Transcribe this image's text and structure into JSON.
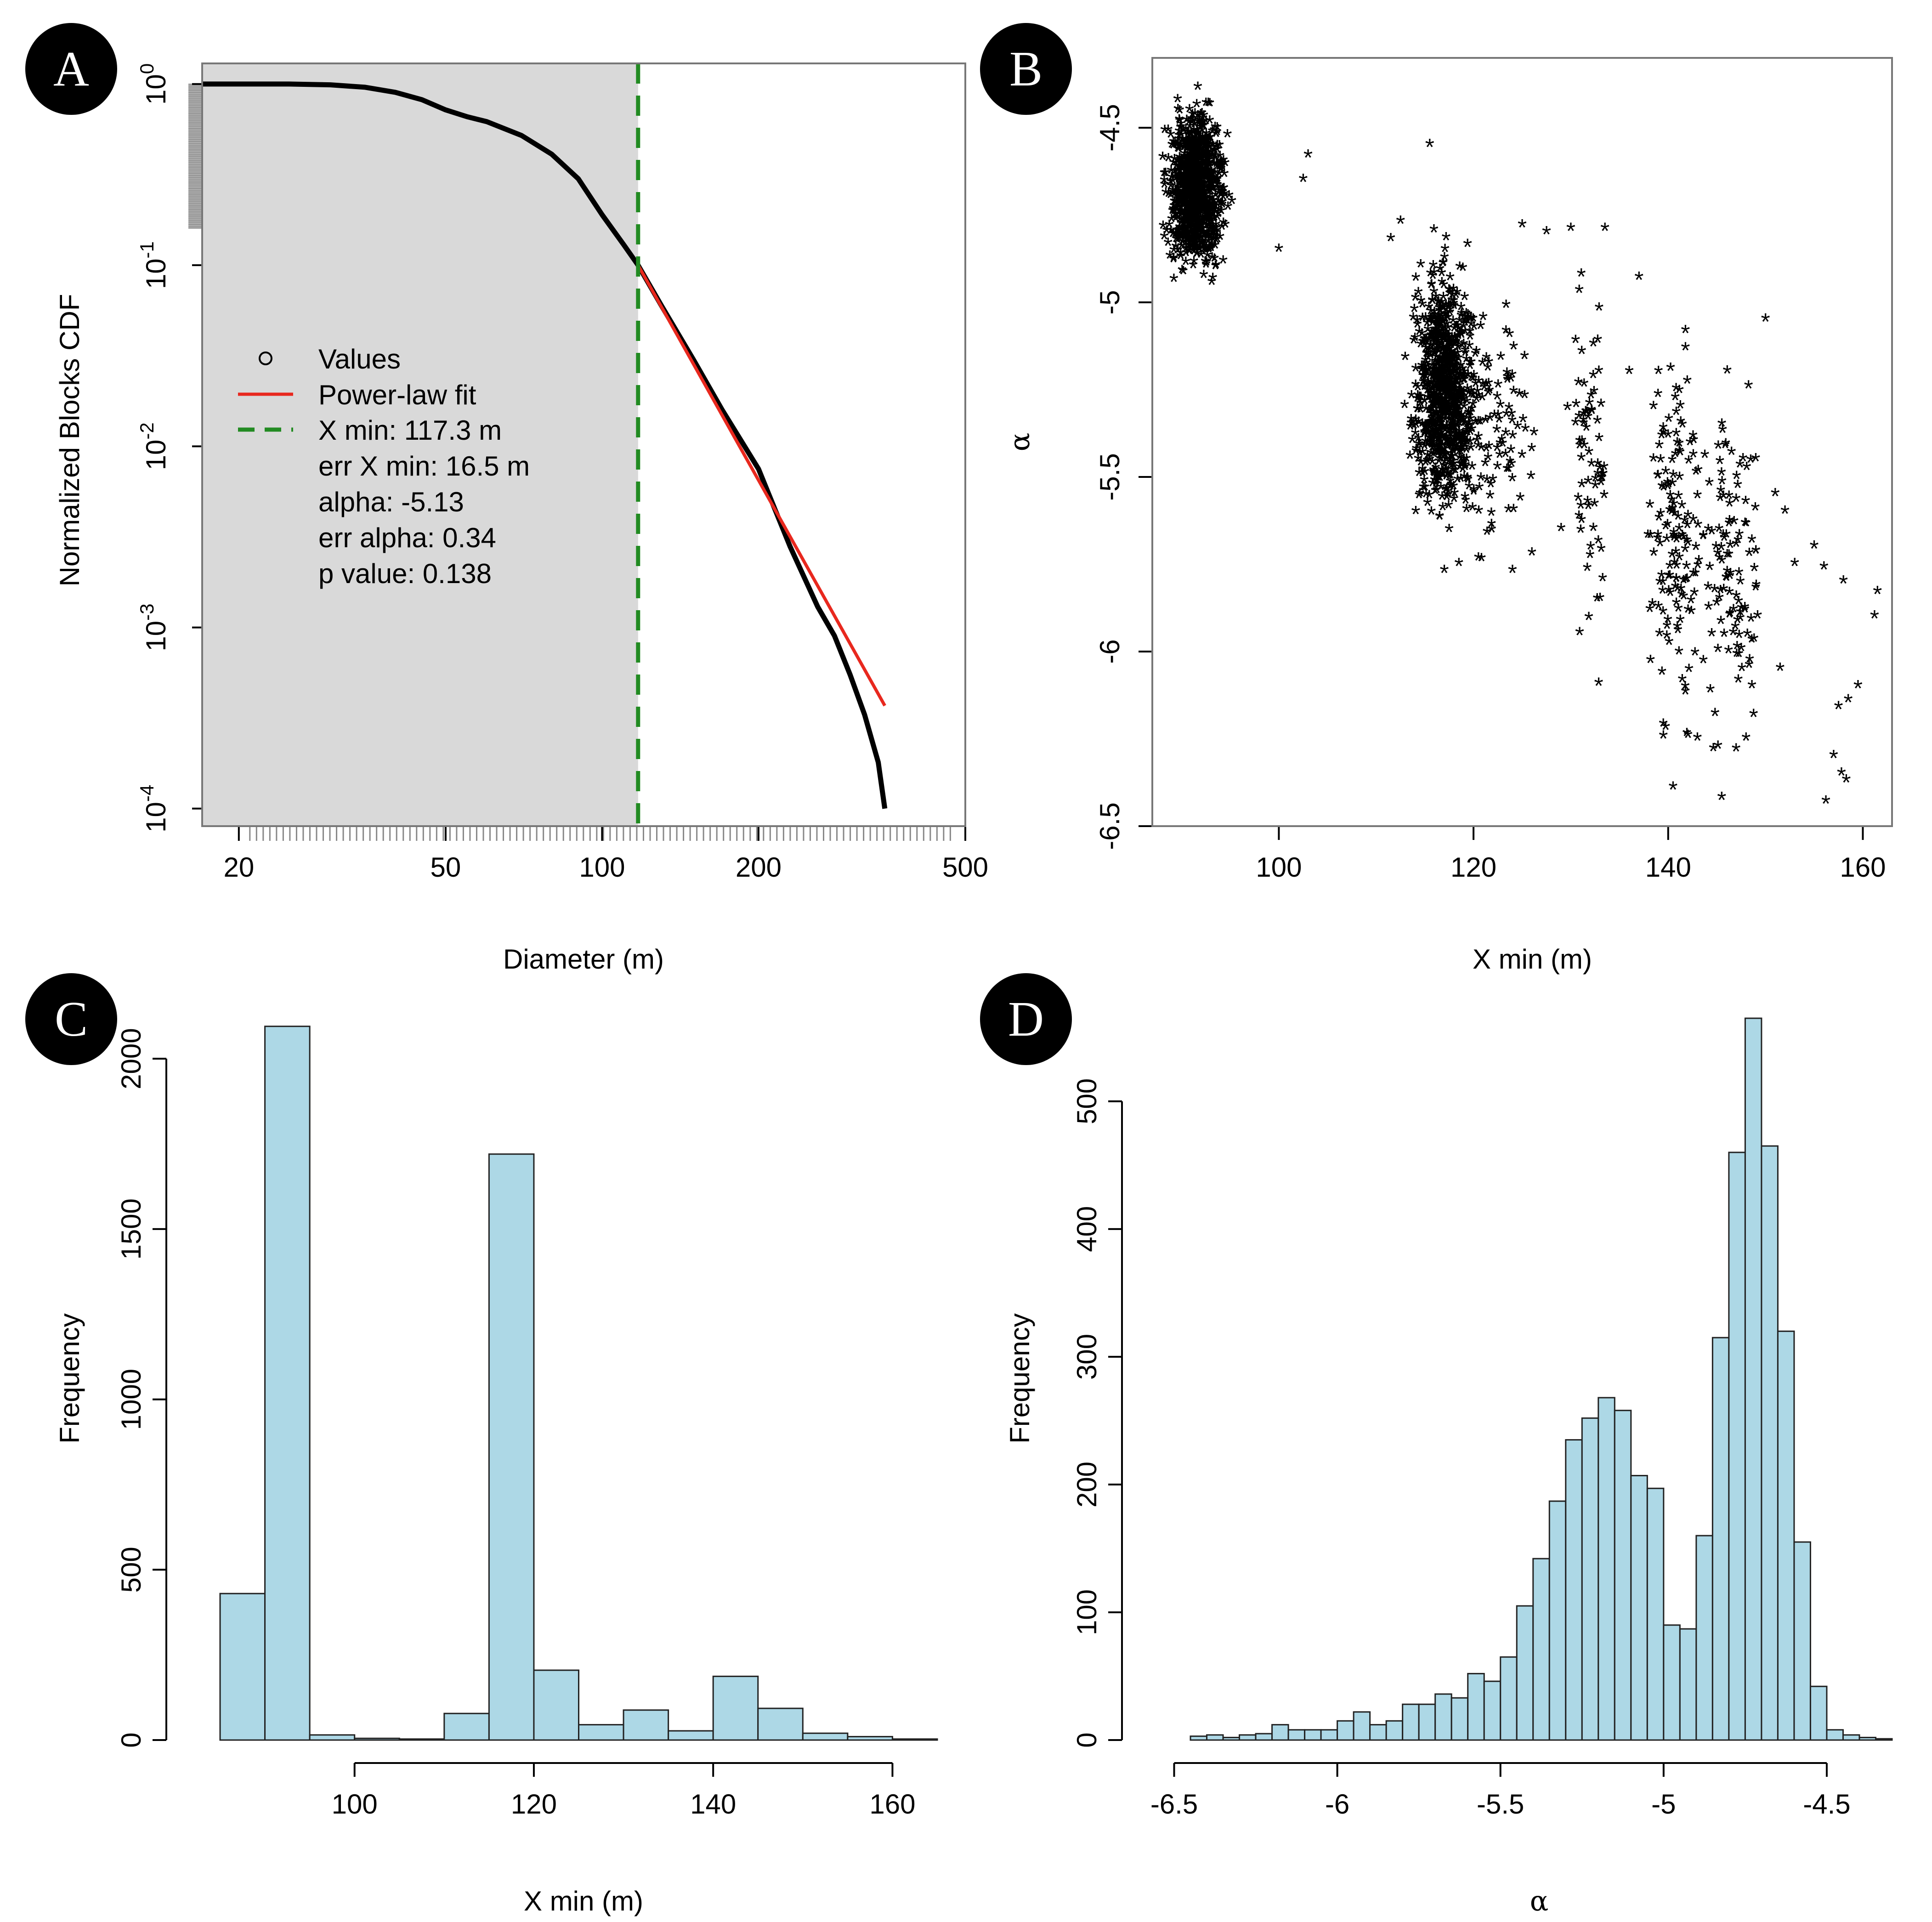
{
  "panels": {
    "A": {
      "badge": "A"
    },
    "B": {
      "badge": "B"
    },
    "C": {
      "badge": "C"
    },
    "D": {
      "badge": "D"
    }
  },
  "chart_data": [
    {
      "panel": "A",
      "type": "line",
      "title": "",
      "xlabel": "Diameter (m)",
      "ylabel": "Normalized Blocks CDF",
      "x_scale": "log",
      "y_scale": "log",
      "xlim": [
        17,
        500
      ],
      "ylim": [
        8e-05,
        1.3
      ],
      "x_ticks": [
        20,
        50,
        100,
        200,
        500
      ],
      "y_ticks": [
        {
          "base": "10",
          "exp": "0",
          "value": 1
        },
        {
          "base": "10",
          "exp": "-1",
          "value": 0.1
        },
        {
          "base": "10",
          "exp": "-2",
          "value": 0.01
        },
        {
          "base": "10",
          "exp": "-3",
          "value": 0.001
        },
        {
          "base": "10",
          "exp": "-4",
          "value": 0.0001
        }
      ],
      "shaded_region": {
        "x_from": 17,
        "x_to": 117.3,
        "color": "#d9d9d9"
      },
      "series": [
        {
          "name": "Values",
          "kind": "cdf",
          "color": "#000000",
          "x": [
            17,
            20,
            25,
            30,
            35,
            40,
            45,
            50,
            55,
            60,
            70,
            80,
            90,
            100,
            110,
            117.3,
            130,
            150,
            170,
            200,
            230,
            260,
            280,
            300,
            320,
            340,
            350
          ],
          "y": [
            1.0,
            1.0,
            1.0,
            0.99,
            0.96,
            0.9,
            0.82,
            0.72,
            0.66,
            0.62,
            0.52,
            0.41,
            0.3,
            0.19,
            0.13,
            0.1,
            0.06,
            0.03,
            0.016,
            0.0075,
            0.0028,
            0.0013,
            0.0009,
            0.00055,
            0.00033,
            0.00018,
            0.0001
          ]
        },
        {
          "name": "Power-law fit",
          "kind": "line",
          "color": "#e8281e",
          "x": [
            117.3,
            350
          ],
          "y": [
            0.1,
            0.00037
          ]
        },
        {
          "name": "X min: 117.3 m",
          "kind": "vline",
          "color": "#228b22",
          "x": 117.3
        }
      ],
      "legend": {
        "position": "center-left",
        "entries": [
          {
            "label": "Values",
            "symbol": "circle"
          },
          {
            "label": "Power-law fit",
            "symbol": "red-line"
          },
          {
            "label": "X min: 117.3 m",
            "symbol": "green-dash"
          }
        ],
        "notes": [
          "err X min: 16.5 m",
          "alpha: -5.13",
          "err alpha: 0.34",
          "p value: 0.138"
        ]
      }
    },
    {
      "panel": "B",
      "type": "scatter",
      "title": "",
      "xlabel": "X min (m)",
      "ylabel": "α",
      "xlim": [
        87,
        163
      ],
      "ylim": [
        -6.5,
        -4.3
      ],
      "x_ticks": [
        100,
        120,
        140,
        160
      ],
      "y_ticks": [
        -4.5,
        -5.0,
        -5.5,
        -6.0,
        -6.5
      ],
      "marker": "*",
      "clusters": [
        {
          "x_center": 91.5,
          "x_spread": 1.3,
          "y_center": -4.68,
          "y_spread": 0.1,
          "n": 1000
        },
        {
          "x_center": 117,
          "x_spread": 1.5,
          "y_center": -5.25,
          "y_spread": 0.16,
          "n": 900
        },
        {
          "x_center": 122.5,
          "x_spread": 1.5,
          "y_center": -5.35,
          "y_spread": 0.15,
          "n": 90
        },
        {
          "x_center": 132,
          "x_spread": 1.0,
          "y_center": -5.4,
          "y_spread": 0.25,
          "n": 70
        },
        {
          "x_center": 141,
          "x_spread": 1.3,
          "y_center": -5.65,
          "y_spread": 0.25,
          "n": 150
        },
        {
          "x_center": 146.5,
          "x_spread": 1.5,
          "y_center": -5.8,
          "y_spread": 0.22,
          "n": 110
        }
      ],
      "points": [
        {
          "x": 102.5,
          "y": -4.65
        },
        {
          "x": 103,
          "y": -4.58
        },
        {
          "x": 100,
          "y": -4.85
        },
        {
          "x": 111.5,
          "y": -4.82
        },
        {
          "x": 112.5,
          "y": -4.77
        },
        {
          "x": 115.5,
          "y": -4.55
        },
        {
          "x": 125,
          "y": -4.78
        },
        {
          "x": 127.5,
          "y": -4.8
        },
        {
          "x": 130,
          "y": -4.79
        },
        {
          "x": 133.5,
          "y": -4.79
        },
        {
          "x": 137,
          "y": -4.93
        },
        {
          "x": 136,
          "y": -5.2
        },
        {
          "x": 126,
          "y": -5.72
        },
        {
          "x": 133,
          "y": -5.85
        },
        {
          "x": 139,
          "y": -5.2
        },
        {
          "x": 150,
          "y": -5.05
        },
        {
          "x": 149,
          "y": -5.45
        },
        {
          "x": 151,
          "y": -5.55
        },
        {
          "x": 152,
          "y": -5.6
        },
        {
          "x": 153,
          "y": -5.75
        },
        {
          "x": 155,
          "y": -5.7
        },
        {
          "x": 156,
          "y": -5.76
        },
        {
          "x": 158,
          "y": -5.8
        },
        {
          "x": 161.5,
          "y": -5.83
        },
        {
          "x": 161.2,
          "y": -5.9
        },
        {
          "x": 151.5,
          "y": -6.05
        },
        {
          "x": 157.5,
          "y": -6.16
        },
        {
          "x": 158.5,
          "y": -6.14
        },
        {
          "x": 159.5,
          "y": -6.1
        },
        {
          "x": 157,
          "y": -6.3
        },
        {
          "x": 157.8,
          "y": -6.35
        },
        {
          "x": 158.3,
          "y": -6.37
        },
        {
          "x": 156.2,
          "y": -6.43
        },
        {
          "x": 140.5,
          "y": -6.39
        },
        {
          "x": 145.5,
          "y": -6.42
        },
        {
          "x": 139.5,
          "y": -6.21
        },
        {
          "x": 143,
          "y": -6.25
        },
        {
          "x": 148,
          "y": -6.25
        },
        {
          "x": 129,
          "y": -5.65
        },
        {
          "x": 124,
          "y": -5.77
        },
        {
          "x": 118.5,
          "y": -5.75
        },
        {
          "x": 117,
          "y": -5.77
        }
      ]
    },
    {
      "panel": "C",
      "type": "bar",
      "title": "",
      "xlabel": "X min (m)",
      "ylabel": "Frequency",
      "xlim": [
        83,
        165
      ],
      "ylim": [
        0,
        2100
      ],
      "x_ticks": [
        100,
        120,
        140,
        160
      ],
      "y_ticks": [
        0,
        500,
        1000,
        1500,
        2000
      ],
      "bin_width": 5,
      "bin_starts": [
        85,
        90,
        95,
        100,
        105,
        110,
        115,
        120,
        125,
        130,
        135,
        140,
        145,
        150,
        155,
        160
      ],
      "values": [
        430,
        2095,
        15,
        5,
        3,
        78,
        1720,
        205,
        45,
        88,
        27,
        187,
        93,
        20,
        10,
        3
      ],
      "color": "#add8e6"
    },
    {
      "panel": "D",
      "type": "bar",
      "title": "",
      "xlabel": "α",
      "ylabel": "Frequency",
      "xlim": [
        -6.55,
        -4.3
      ],
      "ylim": [
        0,
        560
      ],
      "x_ticks": [
        -6.5,
        -6.0,
        -5.5,
        -5.0,
        -4.5
      ],
      "y_ticks": [
        0,
        100,
        200,
        300,
        400,
        500
      ],
      "bin_width": 0.05,
      "bin_starts": [
        -6.45,
        -6.4,
        -6.35,
        -6.3,
        -6.25,
        -6.2,
        -6.15,
        -6.1,
        -6.05,
        -6.0,
        -5.95,
        -5.9,
        -5.85,
        -5.8,
        -5.75,
        -5.7,
        -5.65,
        -5.6,
        -5.55,
        -5.5,
        -5.45,
        -5.4,
        -5.35,
        -5.3,
        -5.25,
        -5.2,
        -5.15,
        -5.1,
        -5.05,
        -5.0,
        -4.95,
        -4.9,
        -4.85,
        -4.8,
        -4.75,
        -4.7,
        -4.65,
        -4.6,
        -4.55,
        -4.5,
        -4.45,
        -4.4,
        -4.35
      ],
      "values": [
        3,
        4,
        2,
        4,
        5,
        12,
        8,
        8,
        8,
        15,
        22,
        12,
        15,
        28,
        28,
        36,
        33,
        52,
        46,
        65,
        105,
        142,
        187,
        235,
        252,
        268,
        258,
        207,
        197,
        90,
        87,
        160,
        315,
        460,
        565,
        465,
        320,
        155,
        42,
        8,
        4,
        2,
        1
      ],
      "color": "#add8e6"
    }
  ]
}
